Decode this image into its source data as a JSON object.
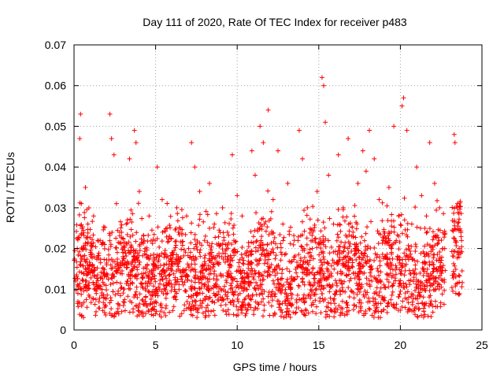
{
  "chart_data": {
    "type": "scatter",
    "title": "Day 111 of 2020, Rate Of TEC Index for receiver p483",
    "xlabel": "GPS time / hours",
    "ylabel": "ROTI / TECUs",
    "xlim": [
      0,
      25
    ],
    "ylim": [
      0,
      0.07
    ],
    "xticks": [
      0,
      5,
      10,
      15,
      20,
      25
    ],
    "xtick_labels": [
      "0",
      "5",
      "10",
      "15",
      "20",
      "25"
    ],
    "yticks": [
      0,
      0.01,
      0.02,
      0.03,
      0.04,
      0.05,
      0.06,
      0.07
    ],
    "ytick_labels": [
      "0",
      "0.01",
      "0.02",
      "0.03",
      "0.04",
      "0.05",
      "0.06",
      "0.07"
    ],
    "grid": true,
    "marker": "+",
    "color": "#ff0000",
    "series": [
      {
        "name": "ROTI",
        "points": [
          [
            0.1,
            0.012
          ],
          [
            0.2,
            0.02
          ],
          [
            0.35,
            0.047
          ],
          [
            0.4,
            0.053
          ],
          [
            0.45,
            0.031
          ],
          [
            0.55,
            0.018
          ],
          [
            0.7,
            0.035
          ],
          [
            0.85,
            0.026
          ],
          [
            1.0,
            0.014
          ],
          [
            1.2,
            0.028
          ],
          [
            1.4,
            0.01
          ],
          [
            1.6,
            0.022
          ],
          [
            1.8,
            0.008
          ],
          [
            2.0,
            0.016
          ],
          [
            2.2,
            0.053
          ],
          [
            2.3,
            0.047
          ],
          [
            2.45,
            0.043
          ],
          [
            2.6,
            0.031
          ],
          [
            2.8,
            0.024
          ],
          [
            3.0,
            0.018
          ],
          [
            3.2,
            0.026
          ],
          [
            3.4,
            0.042
          ],
          [
            3.7,
            0.049
          ],
          [
            3.8,
            0.046
          ],
          [
            4.0,
            0.034
          ],
          [
            4.3,
            0.022
          ],
          [
            4.6,
            0.028
          ],
          [
            4.9,
            0.017
          ],
          [
            5.1,
            0.04
          ],
          [
            5.4,
            0.032
          ],
          [
            5.7,
            0.025
          ],
          [
            6.0,
            0.019
          ],
          [
            6.3,
            0.03
          ],
          [
            6.6,
            0.004
          ],
          [
            6.9,
            0.028
          ],
          [
            7.2,
            0.046
          ],
          [
            7.4,
            0.04
          ],
          [
            7.7,
            0.034
          ],
          [
            8.0,
            0.022
          ],
          [
            8.3,
            0.036
          ],
          [
            8.6,
            0.026
          ],
          [
            8.9,
            0.018
          ],
          [
            9.1,
            0.03
          ],
          [
            9.4,
            0.024
          ],
          [
            9.7,
            0.043
          ],
          [
            10.0,
            0.033
          ],
          [
            10.3,
            0.028
          ],
          [
            10.6,
            0.014
          ],
          [
            10.9,
            0.044
          ],
          [
            11.1,
            0.038
          ],
          [
            11.4,
            0.05
          ],
          [
            11.6,
            0.046
          ],
          [
            11.9,
            0.054
          ],
          [
            12.2,
            0.032
          ],
          [
            12.5,
            0.044
          ],
          [
            12.8,
            0.026
          ],
          [
            13.1,
            0.036
          ],
          [
            13.5,
            0.022
          ],
          [
            13.8,
            0.049
          ],
          [
            14.0,
            0.042
          ],
          [
            14.3,
            0.03
          ],
          [
            14.6,
            0.02
          ],
          [
            14.9,
            0.034
          ],
          [
            15.2,
            0.062
          ],
          [
            15.3,
            0.06
          ],
          [
            15.4,
            0.051
          ],
          [
            15.6,
            0.038
          ],
          [
            15.9,
            0.026
          ],
          [
            16.2,
            0.043
          ],
          [
            16.5,
            0.03
          ],
          [
            16.8,
            0.047
          ],
          [
            17.1,
            0.024
          ],
          [
            17.4,
            0.036
          ],
          [
            17.7,
            0.044
          ],
          [
            17.9,
            0.039
          ],
          [
            18.1,
            0.049
          ],
          [
            18.4,
            0.042
          ],
          [
            18.7,
            0.032
          ],
          [
            19.0,
            0.023
          ],
          [
            19.3,
            0.035
          ],
          [
            19.6,
            0.05
          ],
          [
            19.9,
            0.028
          ],
          [
            20.1,
            0.055
          ],
          [
            20.2,
            0.057
          ],
          [
            20.4,
            0.049
          ],
          [
            20.7,
            0.026
          ],
          [
            21.0,
            0.04
          ],
          [
            21.3,
            0.033
          ],
          [
            21.6,
            0.028
          ],
          [
            21.8,
            0.046
          ],
          [
            22.1,
            0.036
          ],
          [
            22.4,
            0.03
          ],
          [
            22.6,
            0.02
          ],
          [
            23.3,
            0.048
          ],
          [
            23.35,
            0.046
          ],
          [
            23.5,
            0.031
          ],
          [
            23.6,
            0.02
          ],
          [
            23.4,
            0.009
          ]
        ]
      }
    ],
    "density_note_points": 0
  }
}
